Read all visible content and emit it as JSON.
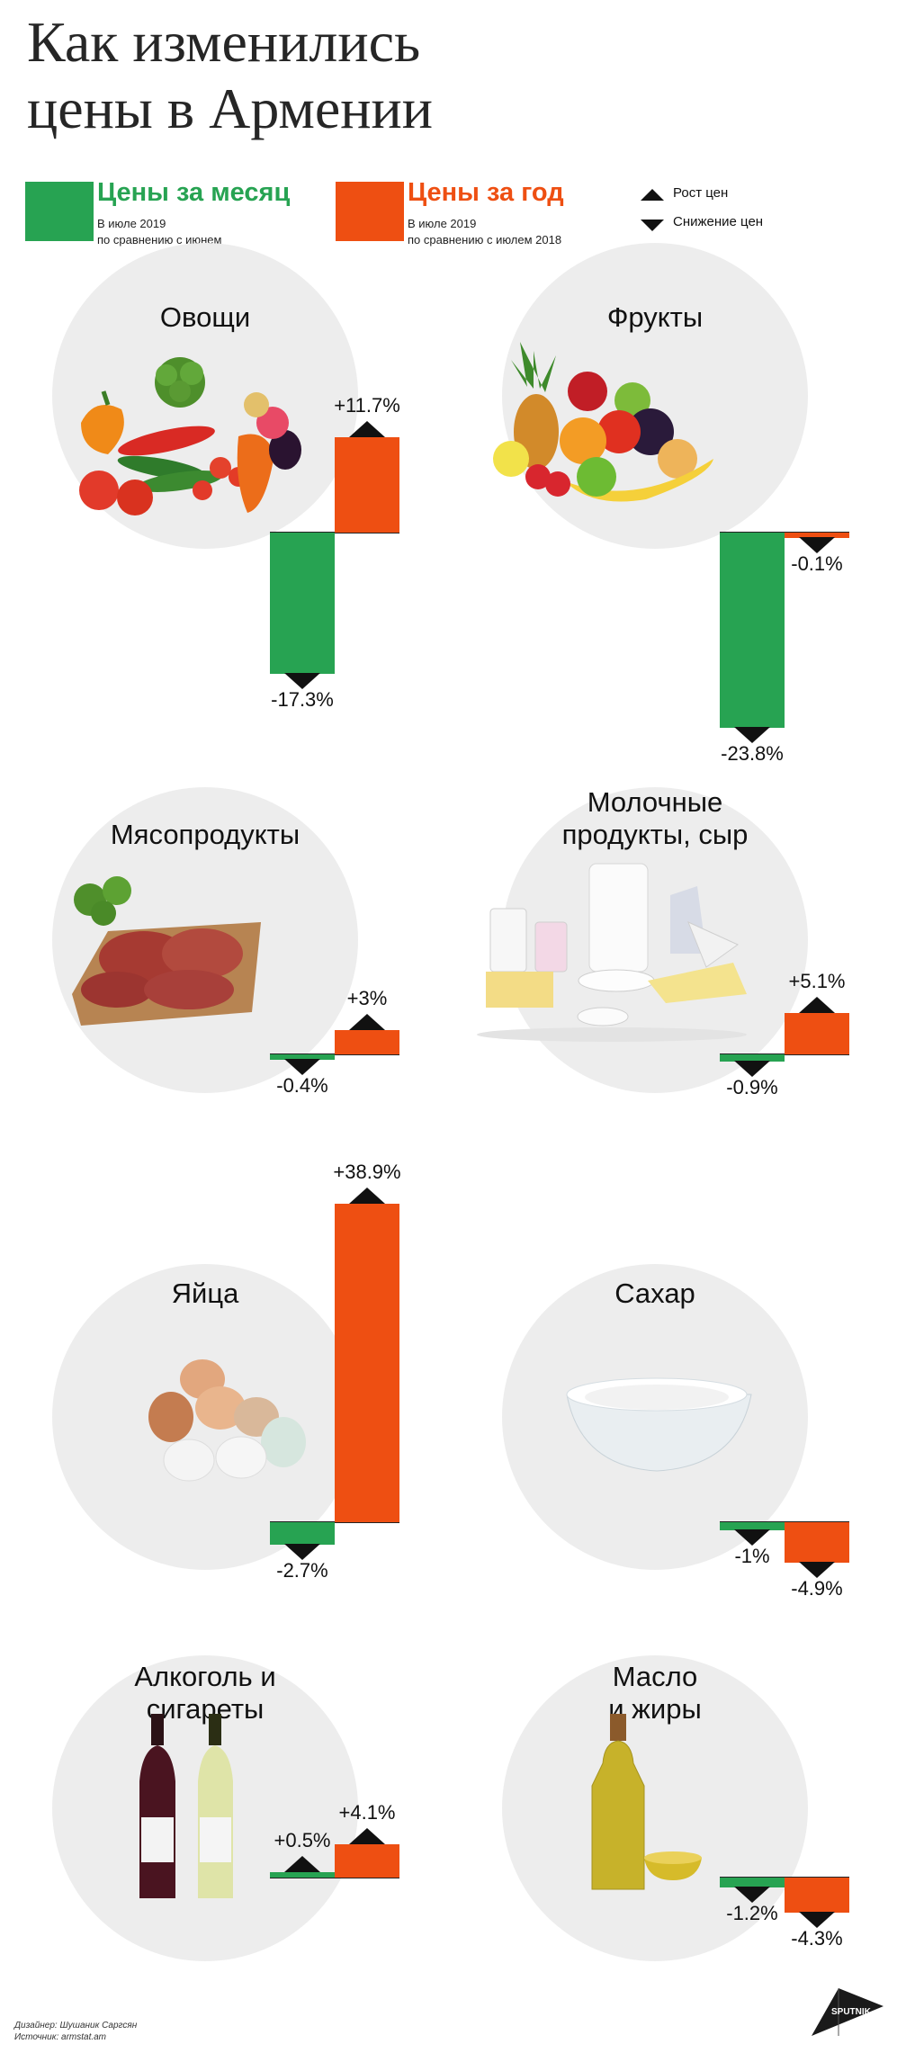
{
  "title_line1": "Как изменились",
  "title_line2": "цены в Армении",
  "legend": {
    "month": {
      "label": "Цены за месяц",
      "sub1": "В июле 2019",
      "sub2": "по сравнению с июнем",
      "color": "#27a352"
    },
    "year": {
      "label": "Цены за год",
      "sub1": "В июле 2019",
      "sub2": "по сравнению с июлем 2018",
      "color": "#ee4f12"
    },
    "up_label": "Рост цен",
    "down_label": "Снижение цен"
  },
  "chart_data": {
    "type": "bar",
    "series": [
      {
        "name": "Цены за месяц",
        "color": "#27a352"
      },
      {
        "name": "Цены за год",
        "color": "#ee4f12"
      }
    ],
    "categories": [
      {
        "name": "Овощи",
        "month": -17.3,
        "year": 11.7,
        "month_label": "-17.3%",
        "year_label": "+11.7%"
      },
      {
        "name": "Фрукты",
        "month": -23.8,
        "year": -0.1,
        "month_label": "-23.8%",
        "year_label": "-0.1%"
      },
      {
        "name": "Мясопродукты",
        "month": -0.4,
        "year": 3,
        "month_label": "-0.4%",
        "year_label": "+3%"
      },
      {
        "name": "Молочные продукты, сыр",
        "month": -0.9,
        "year": 5.1,
        "month_label": "-0.9%",
        "year_label": "+5.1%"
      },
      {
        "name": "Яйца",
        "month": -2.7,
        "year": 38.9,
        "month_label": "-2.7%",
        "year_label": "+38.9%"
      },
      {
        "name": "Сахар",
        "month": -1,
        "year": -4.9,
        "month_label": "-1%",
        "year_label": "-4.9%"
      },
      {
        "name": "Алкоголь и сигареты",
        "month": 0.5,
        "year": 4.1,
        "month_label": "+0.5%",
        "year_label": "+4.1%"
      },
      {
        "name": "Масло и жиры",
        "month": -1.2,
        "year": -4.3,
        "month_label": "-1.2%",
        "year_label": "-4.3%"
      }
    ]
  },
  "panels": [
    {
      "title1": "Овощи",
      "title2": ""
    },
    {
      "title1": "Фрукты",
      "title2": ""
    },
    {
      "title1": "Мясопродукты",
      "title2": ""
    },
    {
      "title1": "Молочные",
      "title2": "продукты, сыр"
    },
    {
      "title1": "Яйца",
      "title2": ""
    },
    {
      "title1": "Сахар",
      "title2": ""
    },
    {
      "title1": "Алкоголь и",
      "title2": "сигареты"
    },
    {
      "title1": "Масло",
      "title2": "и  жиры"
    }
  ],
  "credits": {
    "designer": "Дизайнер: Шушаник Саргсян",
    "source": "Источник: armstat.am"
  },
  "logo_text": "SPUTNIK"
}
